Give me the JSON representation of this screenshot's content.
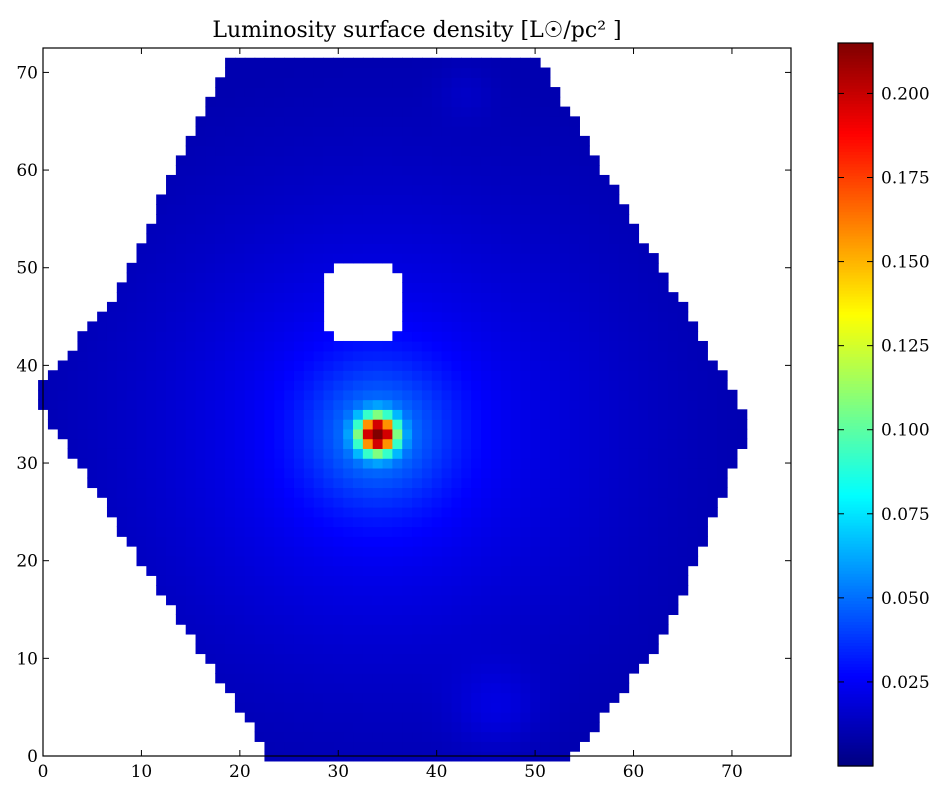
{
  "chart_data": {
    "type": "heatmap",
    "title": "Luminosity surface density [L☉/pc² ]",
    "xlabel": "",
    "ylabel": "",
    "xlim": [
      0,
      76
    ],
    "ylim": [
      0,
      72.5
    ],
    "x_ticks": [
      0,
      10,
      20,
      30,
      40,
      50,
      60,
      70
    ],
    "y_ticks": [
      0,
      10,
      20,
      30,
      40,
      50,
      60,
      70
    ],
    "x_tick_labels": [
      "0",
      "10",
      "20",
      "30",
      "40",
      "50",
      "60",
      "70"
    ],
    "y_tick_labels": [
      "0",
      "10",
      "20",
      "30",
      "40",
      "50",
      "60",
      "70"
    ],
    "grid": false,
    "colormap": "jet",
    "colorbar": {
      "min": 0.0,
      "max": 0.215,
      "ticks": [
        0.025,
        0.05,
        0.075,
        0.1,
        0.125,
        0.15,
        0.175,
        0.2
      ],
      "tick_labels": [
        "0.025",
        "0.050",
        "0.075",
        "0.100",
        "0.125",
        "0.150",
        "0.175",
        "0.200"
      ]
    },
    "data_footprint": {
      "shape": "hexagon",
      "vertices": [
        [
          -0.5,
          37.5
        ],
        [
          7.5,
          47.5
        ],
        [
          19,
          72
        ],
        [
          50,
          72
        ],
        [
          72,
          34
        ],
        [
          63,
          12
        ],
        [
          54,
          0
        ],
        [
          23,
          0
        ],
        [
          -0.5,
          36
        ]
      ]
    },
    "masked_region": {
      "center": [
        32.5,
        46.5
      ],
      "radius": 4.5
    },
    "peak": {
      "x": 34,
      "y": 33,
      "value": 0.215
    },
    "background_level": 0.018
  }
}
